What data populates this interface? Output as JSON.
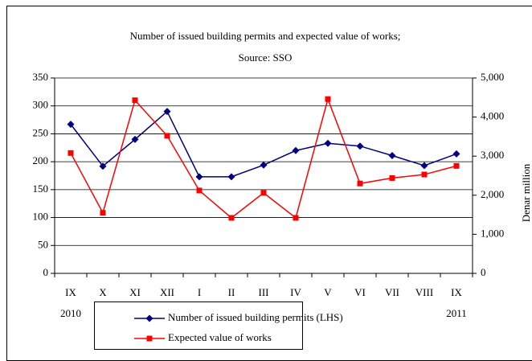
{
  "chart_data": {
    "type": "line",
    "title": "Number of issued building permits and expected value of  works;",
    "subtitle": "Source: SSO",
    "y2_label": "Denar million",
    "categories": [
      "IX",
      "X",
      "XI",
      "XII",
      "I",
      "II",
      "III",
      "IV",
      "V",
      "VI",
      "VII",
      "VIII",
      "IX"
    ],
    "year_labels": [
      "2010",
      "2011"
    ],
    "series": [
      {
        "name": "Number of issued building permits (LHS)",
        "color": "#000080",
        "marker": "diamond",
        "values": [
          267,
          192,
          240,
          290,
          173,
          173,
          194,
          220,
          233,
          228,
          211,
          193,
          214
        ]
      },
      {
        "name": "Expected value of works",
        "color": "#ff0000",
        "marker": "square",
        "axis": "y2",
        "values": [
          3080,
          1550,
          4430,
          3520,
          2120,
          1420,
          2060,
          1420,
          4460,
          2300,
          2440,
          2530,
          2750
        ]
      }
    ],
    "ylim": [
      0,
      350
    ],
    "yticks": [
      0,
      50,
      100,
      150,
      200,
      250,
      300,
      350
    ],
    "y2lim": [
      0,
      5000
    ],
    "y2ticks": [
      0,
      {
        "value": 1000,
        "label": "1,000"
      },
      {
        "value": 2000,
        "label": "2,000"
      },
      {
        "value": 3000,
        "label": "3,000"
      },
      {
        "value": 4000,
        "label": "4,000"
      },
      {
        "value": 5000,
        "label": "5,000"
      }
    ],
    "grid": true
  }
}
